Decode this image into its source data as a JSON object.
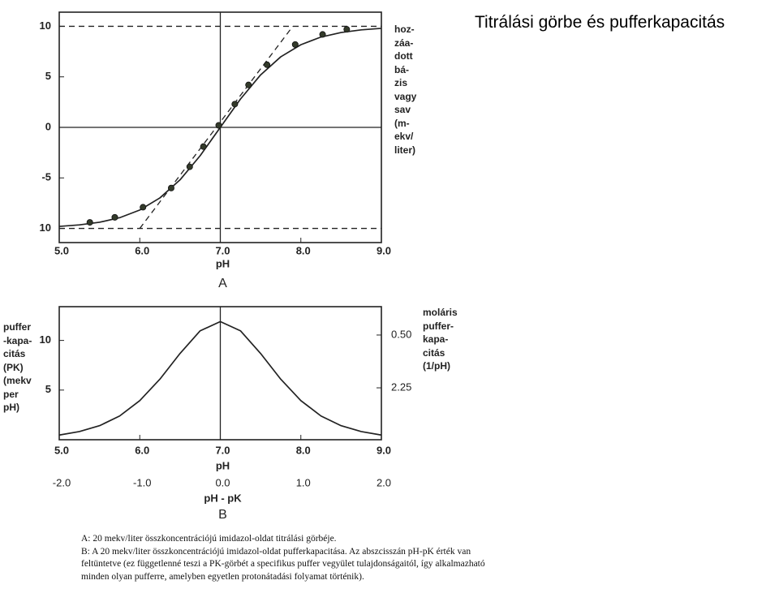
{
  "title": "Titrálási görbe és pufferkapacitás",
  "chart_data": [
    {
      "type": "line",
      "panel": "A",
      "x_label": "pH",
      "y_label": "hoz-\nzáa-\ndott\nbá-\nzis\nvagy\nsav\n(m-\nekv/\nliter)",
      "xlim": [
        5,
        9
      ],
      "ylim": [
        -11.4,
        11.4
      ],
      "xticks": [
        {
          "value": 5,
          "label": "5.0"
        },
        {
          "value": 6,
          "label": "6.0"
        },
        {
          "value": 7,
          "label": "7.0"
        },
        {
          "value": 8,
          "label": "8.0"
        },
        {
          "value": 9,
          "label": "9.0"
        }
      ],
      "yticks": [
        10,
        5,
        0,
        -5,
        {
          "value": -10,
          "label": "10"
        }
      ],
      "series": [
        {
          "color": "#222222",
          "x": [
            5,
            5.25,
            5.5,
            5.75,
            6,
            6.25,
            6.5,
            6.75,
            7,
            7.25,
            7.5,
            7.75,
            8,
            8.25,
            8.5,
            8.75,
            9
          ],
          "values": [
            -9.8,
            -9.65,
            -9.39,
            -8.94,
            -8.18,
            -6.98,
            -5.19,
            -2.8,
            0,
            2.8,
            5.19,
            6.98,
            8.18,
            8.94,
            9.39,
            9.65,
            9.8
          ]
        },
        {
          "color": "#333a2a",
          "markers": true,
          "x": [
            5.38,
            5.69,
            6.04,
            6.39,
            6.62,
            6.79,
            6.98,
            7.18,
            7.35,
            7.58,
            7.93,
            8.27,
            8.57
          ],
          "values": [
            -9.4,
            -8.9,
            -7.9,
            -6.0,
            -3.9,
            -1.9,
            0.2,
            2.3,
            4.2,
            6.2,
            8.2,
            9.2,
            9.7
          ]
        }
      ],
      "lines": [
        {
          "x": [
            5,
            9
          ],
          "values": [
            10,
            10
          ],
          "dash": true
        },
        {
          "x": [
            5,
            9
          ],
          "values": [
            -10,
            -10
          ],
          "dash": true
        },
        {
          "x": [
            6,
            7.9
          ],
          "values": [
            -10,
            10
          ],
          "dash": true
        },
        {
          "x": [
            7,
            7
          ],
          "values": [
            -11.4,
            11.4
          ]
        },
        {
          "x": [
            5,
            9
          ],
          "values": [
            0,
            0
          ]
        }
      ]
    },
    {
      "type": "line",
      "panel": "B",
      "x_label": "pH",
      "x2_label": "pH - pK",
      "y_label": "puffer\n-kapa-\ncitás\n(PK)\n(mekv\nper\npH)",
      "y2_label": "moláris\npuffer-\nkapa-\ncitás\n(1/pH)",
      "xlim": [
        5,
        9
      ],
      "ylim": [
        0,
        13.4
      ],
      "y2lim": [
        3.97,
        -0.44
      ],
      "x2lim": [
        -2,
        2
      ],
      "xticks": [
        {
          "value": 5,
          "label": "5.0"
        },
        {
          "value": 6,
          "label": "6.0"
        },
        {
          "value": 7,
          "label": "7.0"
        },
        {
          "value": 8,
          "label": "8.0"
        },
        {
          "value": 9,
          "label": "9.0"
        }
      ],
      "x2ticks": [
        {
          "value": -2,
          "label": "-2.0"
        },
        {
          "value": -1,
          "label": "-1.0"
        },
        {
          "value": 0,
          "label": "0.0"
        },
        {
          "value": 1,
          "label": "1.0"
        },
        {
          "value": 2,
          "label": "2.0"
        }
      ],
      "yticks": [
        10,
        5
      ],
      "y2ticks": [
        {
          "value": 0.5,
          "label": "0.50"
        },
        2.25
      ],
      "series": [
        {
          "color": "#222222",
          "x": [
            5,
            5.25,
            5.5,
            5.75,
            6,
            6.25,
            6.5,
            6.75,
            7,
            7.25,
            7.5,
            7.75,
            8,
            8.25,
            8.5,
            8.75,
            9
          ],
          "values": [
            0.47,
            0.82,
            1.41,
            2.39,
            3.94,
            6.1,
            8.69,
            10.97,
            11.9,
            10.97,
            8.69,
            6.1,
            3.94,
            2.39,
            1.41,
            0.82,
            0.47
          ]
        }
      ],
      "lines": [
        {
          "x": [
            7,
            7
          ],
          "values": [
            0,
            13.4
          ]
        }
      ]
    }
  ],
  "caption": [
    "A: 20 mekv/liter összkoncentrációjú imidazol-oldat titrálási görbéje.",
    "B: A 20 mekv/liter összkoncentrációjú imidazol-oldat pufferkapacitása. Az abszcisszán pH-pK érték van",
    "feltüntetve (ez függetlenné teszi a PK-görbét a specifikus puffer vegyület tulajdonságaitól, így alkalmazható",
    "minden olyan pufferre, amelyben egyetlen protonátadási folyamat történik)."
  ]
}
